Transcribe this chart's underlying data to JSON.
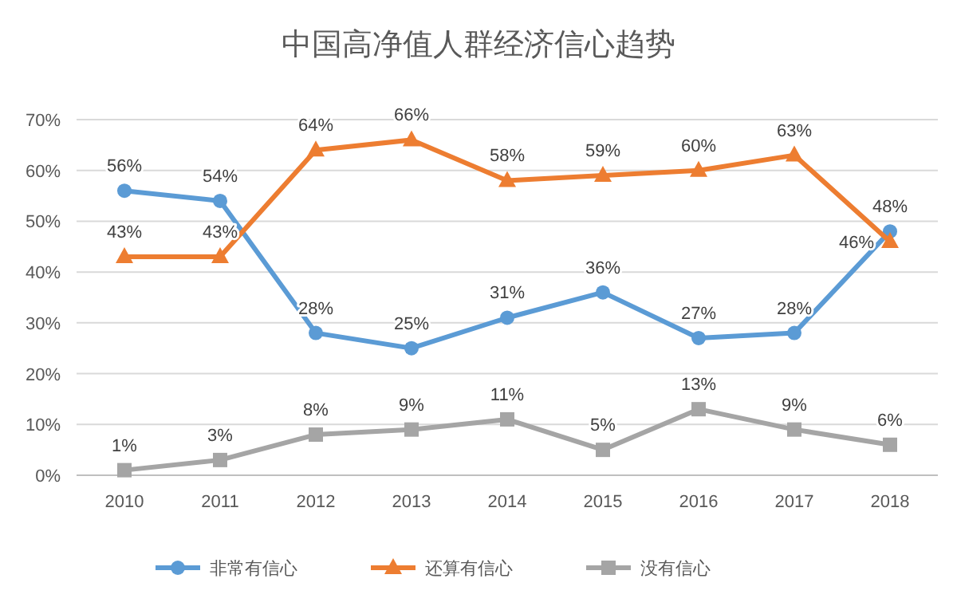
{
  "chart_data": {
    "type": "line",
    "title": "中国高净值人群经济信心趋势",
    "categories": [
      "2010",
      "2011",
      "2012",
      "2013",
      "2014",
      "2015",
      "2016",
      "2017",
      "2018"
    ],
    "series": [
      {
        "name": "非常有信心",
        "color": "#5b9bd5",
        "marker": "circle",
        "values": [
          56,
          54,
          28,
          25,
          31,
          36,
          27,
          28,
          48
        ],
        "value_labels": [
          "56%",
          "54%",
          "28%",
          "25%",
          "31%",
          "36%",
          "27%",
          "28%",
          "48%"
        ]
      },
      {
        "name": "还算有信心",
        "color": "#ed7d31",
        "marker": "triangle",
        "values": [
          43,
          43,
          64,
          66,
          58,
          59,
          60,
          63,
          46
        ],
        "value_labels": [
          "43%",
          "43%",
          "64%",
          "66%",
          "58%",
          "59%",
          "60%",
          "63%",
          "46%"
        ]
      },
      {
        "name": "没有信心",
        "color": "#a5a5a5",
        "marker": "square",
        "values": [
          1,
          3,
          8,
          9,
          11,
          5,
          13,
          9,
          6
        ],
        "value_labels": [
          "1%",
          "3%",
          "8%",
          "9%",
          "11%",
          "5%",
          "13%",
          "9%",
          "6%"
        ]
      }
    ],
    "ylim": [
      0,
      70
    ],
    "yticks": [
      {
        "value": 0,
        "label": "0%"
      },
      {
        "value": 10,
        "label": "10%"
      },
      {
        "value": 20,
        "label": "20%"
      },
      {
        "value": 30,
        "label": "30%"
      },
      {
        "value": 40,
        "label": "40%"
      },
      {
        "value": 50,
        "label": "50%"
      },
      {
        "value": 60,
        "label": "60%"
      },
      {
        "value": 70,
        "label": "70%"
      }
    ],
    "grid": "y",
    "legend": "bottom",
    "line_style": "solid"
  }
}
